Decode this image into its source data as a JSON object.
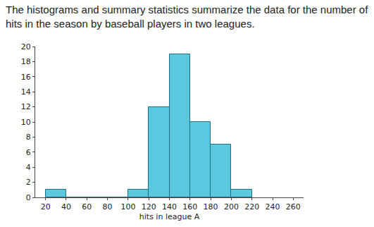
{
  "chart_data": {
    "type": "histogram",
    "title": "The histograms and summary statistics summarize the data for the number of hits in the season by baseball players in two leagues.",
    "x_label": "hits in league A",
    "bins": [
      20,
      40,
      60,
      80,
      100,
      120,
      140,
      160,
      180,
      200,
      220
    ],
    "values": [
      1,
      0,
      0,
      0,
      1,
      12,
      19,
      10,
      7,
      1
    ],
    "color": "#5cc8df",
    "xlim": [
      10,
      270
    ],
    "xticks": [
      20,
      40,
      60,
      80,
      100,
      120,
      140,
      160,
      180,
      200,
      220,
      240,
      260
    ],
    "ylim": [
      0,
      20
    ],
    "yticks": [
      0,
      2,
      4,
      6,
      8,
      10,
      12,
      14,
      16,
      18,
      20
    ],
    "grid": false
  }
}
